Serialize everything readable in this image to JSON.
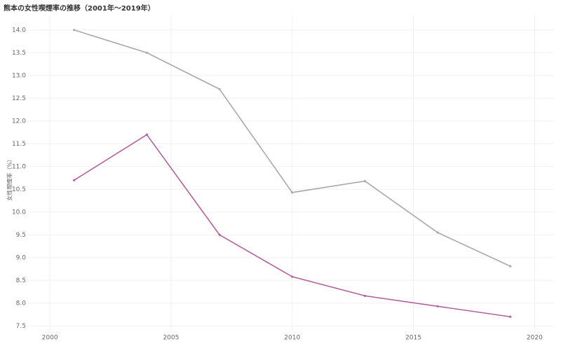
{
  "chart_data": {
    "type": "line",
    "title": "熊本の女性喫煙率の推移（2001年〜2019年）",
    "y_label": "女性喫煙率（%）",
    "x": [
      2001,
      2004,
      2007,
      2010,
      2013,
      2016,
      2019
    ],
    "series": [
      {
        "color": "#aba8ac",
        "values": [
          14.0,
          13.5,
          12.7,
          10.43,
          10.68,
          9.55,
          8.81
        ]
      },
      {
        "color": "#b5609a",
        "values": [
          10.7,
          11.7,
          9.5,
          8.58,
          8.16,
          7.93,
          7.7
        ]
      }
    ],
    "xlim": [
      1999.1,
      2020.8
    ],
    "xticks": [
      2000,
      2005,
      2010,
      2015,
      2020
    ],
    "ylim": [
      7.35,
      14.32
    ],
    "yticks": [
      {
        "value": 7.5,
        "label": "7.5"
      },
      {
        "value": 8,
        "label": "8.0"
      },
      {
        "value": 8.5,
        "label": "8.5"
      },
      {
        "value": 9,
        "label": "9.0"
      },
      {
        "value": 9.5,
        "label": "9.5"
      },
      {
        "value": 10,
        "label": "10.0"
      },
      {
        "value": 10.5,
        "label": "10.5"
      },
      {
        "value": 11,
        "label": "11.0"
      },
      {
        "value": 11.5,
        "label": "11.5"
      },
      {
        "value": 12,
        "label": "12.0"
      },
      {
        "value": 12.5,
        "label": "12.5"
      },
      {
        "value": 13,
        "label": "13.0"
      },
      {
        "value": 13.5,
        "label": "13.5"
      },
      {
        "value": 14,
        "label": "14.0"
      }
    ],
    "grid": true
  }
}
